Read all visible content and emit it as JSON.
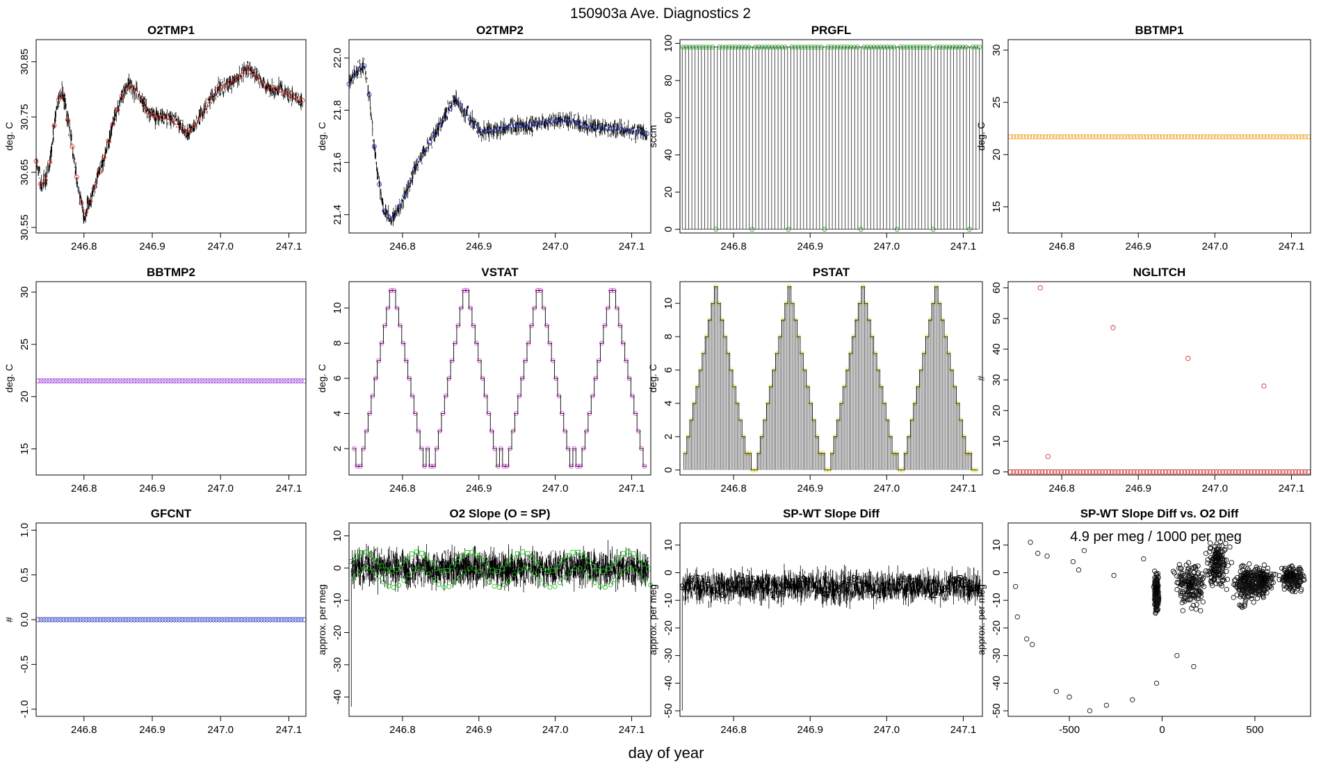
{
  "figure": {
    "title": "150903a   Ave. Diagnostics 2",
    "xlabel": "day of year"
  },
  "chart_data": [
    {
      "id": "o2tmp1",
      "type": "line",
      "title": "O2TMP1",
      "ylabel": "deg. C",
      "xlim": [
        246.73,
        247.125
      ],
      "ylim": [
        30.54,
        30.89
      ],
      "xticks": [
        246.8,
        246.9,
        247.0,
        247.1
      ],
      "xtick_labels": [
        "246.8",
        "246.9",
        "247.0",
        "247.1"
      ],
      "yticks": [
        30.55,
        30.65,
        30.75,
        30.85
      ],
      "ytick_labels": [
        "30.55",
        "30.65",
        "30.75",
        "30.85"
      ],
      "x": [
        246.73,
        246.738,
        246.748,
        246.76,
        246.768,
        246.78,
        246.792,
        246.8,
        246.81,
        246.82,
        246.83,
        246.843,
        246.856,
        246.866,
        246.88,
        246.893,
        246.905,
        246.92,
        246.935,
        246.95,
        246.965,
        246.98,
        246.995,
        247.01,
        247.025,
        247.04,
        247.055,
        247.07,
        247.085,
        247.1,
        247.12
      ],
      "y": [
        30.67,
        30.62,
        30.65,
        30.77,
        30.8,
        30.72,
        30.62,
        30.57,
        30.6,
        30.64,
        30.68,
        30.74,
        30.79,
        30.81,
        30.79,
        30.76,
        30.75,
        30.75,
        30.74,
        30.72,
        30.74,
        30.77,
        30.8,
        30.81,
        30.82,
        30.84,
        30.82,
        30.8,
        30.8,
        30.79,
        30.78
      ],
      "markers": "circle",
      "marker_color": "#e03030",
      "marker_count": 60,
      "noise": 0.012
    },
    {
      "id": "o2tmp2",
      "type": "line",
      "title": "O2TMP2",
      "ylabel": "deg. C",
      "xlim": [
        246.73,
        247.125
      ],
      "ylim": [
        21.33,
        22.07
      ],
      "xticks": [
        246.8,
        246.9,
        247.0,
        247.1
      ],
      "xtick_labels": [
        "246.8",
        "246.9",
        "247.0",
        "247.1"
      ],
      "yticks": [
        21.4,
        21.6,
        21.8,
        22.0
      ],
      "ytick_labels": [
        "21.4",
        "21.6",
        "21.8",
        "22.0"
      ],
      "x": [
        246.73,
        246.74,
        246.75,
        246.757,
        246.765,
        246.775,
        246.785,
        246.8,
        246.815,
        246.83,
        246.85,
        246.87,
        246.885,
        246.9,
        246.92,
        246.94,
        246.96,
        246.98,
        247.0,
        247.02,
        247.04,
        247.06,
        247.08,
        247.1,
        247.12
      ],
      "y": [
        21.9,
        21.95,
        21.97,
        21.85,
        21.6,
        21.42,
        21.38,
        21.45,
        21.57,
        21.65,
        21.75,
        21.84,
        21.78,
        21.72,
        21.72,
        21.74,
        21.74,
        21.75,
        21.76,
        21.76,
        21.74,
        21.73,
        21.73,
        21.72,
        21.71
      ],
      "markers": "circle",
      "marker_color": "#2030c0",
      "marker_count": 60,
      "noise": 0.025
    },
    {
      "id": "prgfl",
      "type": "pulse",
      "title": "PRGFL",
      "ylabel": "sccm",
      "xlim": [
        246.73,
        247.125
      ],
      "ylim": [
        -2,
        102
      ],
      "xticks": [
        246.8,
        246.9,
        247.0,
        247.1
      ],
      "xtick_labels": [
        "246.8",
        "246.9",
        "247.0",
        "247.1"
      ],
      "yticks": [
        0,
        20,
        40,
        60,
        80,
        100
      ],
      "ytick_labels": [
        "0",
        "20",
        "40",
        "60",
        "80",
        "100"
      ],
      "high": 98,
      "low": 0,
      "period_days": 0.00417,
      "marker_color": "#20a020"
    },
    {
      "id": "bbtmp1",
      "type": "scatter",
      "title": "BBTMP1",
      "ylabel": "deg. C",
      "xlim": [
        246.73,
        247.125
      ],
      "ylim": [
        12.5,
        31
      ],
      "xticks": [
        246.8,
        246.9,
        247.0,
        247.1
      ],
      "xtick_labels": [
        "246.8",
        "246.9",
        "247.0",
        "247.1"
      ],
      "yticks": [
        15,
        20,
        25,
        30
      ],
      "ytick_labels": [
        "15",
        "20",
        "25",
        "30"
      ],
      "constant": 21.7,
      "marker_count": 95,
      "marker_color": "#f0a020"
    },
    {
      "id": "bbtmp2",
      "type": "scatter",
      "title": "BBTMP2",
      "ylabel": "deg. C",
      "xlim": [
        246.73,
        247.125
      ],
      "ylim": [
        12.5,
        31
      ],
      "xticks": [
        246.8,
        246.9,
        247.0,
        247.1
      ],
      "xtick_labels": [
        "246.8",
        "246.9",
        "247.0",
        "247.1"
      ],
      "yticks": [
        15,
        20,
        25,
        30
      ],
      "ytick_labels": [
        "15",
        "20",
        "25",
        "30"
      ],
      "constant": 21.5,
      "marker_count": 95,
      "marker_color": "#a040e0"
    },
    {
      "id": "vstat",
      "type": "step",
      "title": "VSTAT",
      "ylabel": "deg. C",
      "xlim": [
        246.73,
        247.125
      ],
      "ylim": [
        0.5,
        11.5
      ],
      "xticks": [
        246.8,
        246.9,
        247.0,
        247.1
      ],
      "xtick_labels": [
        "246.8",
        "246.9",
        "247.0",
        "247.1"
      ],
      "yticks": [
        2,
        4,
        6,
        8,
        10
      ],
      "ytick_labels": [
        "2",
        "4",
        "6",
        "8",
        "10"
      ],
      "pattern": [
        2,
        1,
        1,
        2,
        3,
        4,
        5,
        6,
        7,
        8,
        9,
        10,
        11,
        11,
        10,
        9,
        8,
        7,
        6,
        5,
        4,
        3,
        2,
        1
      ],
      "cycles": 4,
      "start": 246.735,
      "step_days": 0.004,
      "marker_color": "#e040e0"
    },
    {
      "id": "pstat",
      "type": "stepPulse",
      "title": "PSTAT",
      "ylabel": "deg. C",
      "xlim": [
        246.73,
        247.125
      ],
      "ylim": [
        -0.3,
        11.3
      ],
      "xticks": [
        246.8,
        246.9,
        247.0,
        247.1
      ],
      "xtick_labels": [
        "246.8",
        "246.9",
        "247.0",
        "247.1"
      ],
      "yticks": [
        0,
        2,
        4,
        6,
        8,
        10
      ],
      "ytick_labels": [
        "0",
        "2",
        "4",
        "6",
        "8",
        "10"
      ],
      "pattern": [
        1,
        2,
        3,
        4,
        5,
        6,
        7,
        8,
        9,
        10,
        11,
        10,
        9,
        8,
        7,
        6,
        5,
        4,
        3,
        2,
        1,
        1,
        0,
        0
      ],
      "cycles": 4,
      "start": 246.735,
      "step_days": 0.004,
      "marker_color": "#e8e020"
    },
    {
      "id": "nglitch",
      "type": "scatter",
      "title": "NGLITCH",
      "ylabel": "#",
      "xlim": [
        246.73,
        247.125
      ],
      "ylim": [
        -1,
        62
      ],
      "xticks": [
        246.8,
        246.9,
        247.0,
        247.1
      ],
      "xtick_labels": [
        "246.8",
        "246.9",
        "247.0",
        "247.1"
      ],
      "yticks": [
        0,
        10,
        20,
        30,
        40,
        50,
        60
      ],
      "ytick_labels": [
        "0",
        "10",
        "20",
        "30",
        "40",
        "50",
        "60"
      ],
      "constant": 0,
      "marker_count": 95,
      "marker_color": "#d03030",
      "outliers": [
        {
          "x": 246.772,
          "y": 60
        },
        {
          "x": 246.782,
          "y": 5
        },
        {
          "x": 246.867,
          "y": 47
        },
        {
          "x": 246.965,
          "y": 37
        },
        {
          "x": 247.064,
          "y": 28
        }
      ]
    },
    {
      "id": "gfcnt",
      "type": "scatter",
      "title": "GFCNT",
      "ylabel": "#",
      "xlim": [
        246.73,
        247.125
      ],
      "ylim": [
        -1.08,
        1.08
      ],
      "xticks": [
        246.8,
        246.9,
        247.0,
        247.1
      ],
      "xtick_labels": [
        "246.8",
        "246.9",
        "247.0",
        "247.1"
      ],
      "yticks": [
        -1.0,
        -0.5,
        0.0,
        0.5,
        1.0
      ],
      "ytick_labels": [
        "-1.0",
        "-0.5",
        "0.0",
        "0.5",
        "1.0"
      ],
      "constant": 0,
      "marker_count": 95,
      "marker_color": "#3040c0"
    },
    {
      "id": "o2slope",
      "type": "noisy",
      "title": "O2 Slope (O = SP)",
      "ylabel": "approx. per meg",
      "xlim": [
        246.73,
        247.125
      ],
      "ylim": [
        -46,
        14
      ],
      "xticks": [
        246.8,
        246.9,
        247.0,
        247.1
      ],
      "xtick_labels": [
        "246.8",
        "246.9",
        "247.0",
        "247.1"
      ],
      "yticks": [
        -40,
        -30,
        -20,
        -10,
        0,
        10
      ],
      "ytick_labels": [
        "-40",
        "-30",
        "-20",
        "-10",
        "0",
        "10"
      ],
      "base": 0,
      "spread": 4,
      "spike": {
        "x": 246.733,
        "y": -43
      },
      "marker_color": "#20c020",
      "squares": true
    },
    {
      "id": "spwt",
      "type": "noisy",
      "title": "SP-WT Slope Diff",
      "ylabel": "approx. per meg",
      "xlim": [
        246.73,
        247.125
      ],
      "ylim": [
        -52,
        18
      ],
      "xticks": [
        246.8,
        246.9,
        247.0,
        247.1
      ],
      "xtick_labels": [
        "246.8",
        "246.9",
        "247.0",
        "247.1"
      ],
      "yticks": [
        -50,
        -40,
        -30,
        -20,
        -10,
        0,
        10
      ],
      "ytick_labels": [
        "-50",
        "-40",
        "-30",
        "-20",
        "-10",
        "0",
        "10"
      ],
      "base": -5,
      "spread": 4,
      "spike": {
        "x": 246.733,
        "y": -50
      },
      "marker_color": "#f07800",
      "digits": true
    },
    {
      "id": "scatterdiff",
      "type": "scatter2d",
      "title": "SP-WT Slope Diff vs. O2 Diff",
      "ylabel": "approx. per meg",
      "xlim": [
        -830,
        800
      ],
      "ylim": [
        -52,
        18
      ],
      "xticks": [
        -500,
        0,
        500
      ],
      "xtick_labels": [
        "-500",
        "0",
        "500"
      ],
      "yticks": [
        -50,
        -40,
        -30,
        -20,
        -10,
        0,
        10
      ],
      "ytick_labels": [
        "-50",
        "-40",
        "-30",
        "-20",
        "-10",
        "0",
        "10"
      ],
      "annotation": "4.9 per meg / 1000 per meg",
      "annotation_color": "#00e0e0",
      "clusters": [
        {
          "x": -30,
          "y": -8,
          "sx": 8,
          "sy": 5
        },
        {
          "x": 150,
          "y": -4,
          "sx": 50,
          "sy": 6
        },
        {
          "x": 300,
          "y": 3,
          "sx": 40,
          "sy": 6
        },
        {
          "x": 450,
          "y": -4,
          "sx": 40,
          "sy": 5
        },
        {
          "x": 540,
          "y": -3,
          "sx": 40,
          "sy": 4
        },
        {
          "x": 700,
          "y": -2,
          "sx": 40,
          "sy": 3
        }
      ],
      "ring": [
        {
          "x": -790,
          "y": -5
        },
        {
          "x": -780,
          "y": -16
        },
        {
          "x": -730,
          "y": -24
        },
        {
          "x": -700,
          "y": -26
        },
        {
          "x": -670,
          "y": 7
        },
        {
          "x": -620,
          "y": 6
        },
        {
          "x": -570,
          "y": -43
        },
        {
          "x": -500,
          "y": -45
        },
        {
          "x": -450,
          "y": 1
        },
        {
          "x": -390,
          "y": -50
        },
        {
          "x": -300,
          "y": -48
        },
        {
          "x": -260,
          "y": -1
        },
        {
          "x": -160,
          "y": -46
        },
        {
          "x": -100,
          "y": 5
        },
        {
          "x": -30,
          "y": -40
        },
        {
          "x": 80,
          "y": -30
        },
        {
          "x": 170,
          "y": -34
        },
        {
          "x": -710,
          "y": 11
        },
        {
          "x": -480,
          "y": 4
        },
        {
          "x": -420,
          "y": 8
        }
      ]
    }
  ]
}
